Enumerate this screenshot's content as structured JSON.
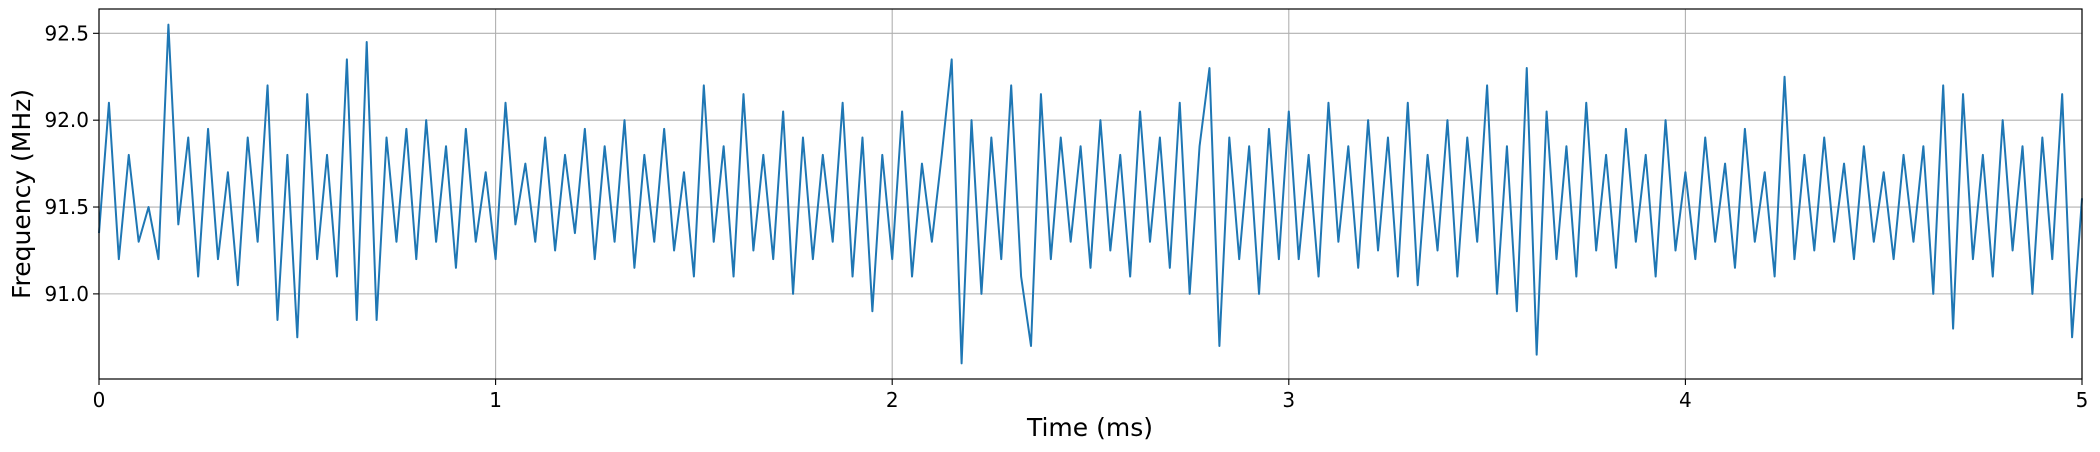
{
  "chart_data": {
    "type": "line",
    "x_label": "Time (ms)",
    "y_label": "Frequency (MHz)",
    "color": "#1f77b4",
    "grid": true,
    "xlim": [
      0,
      5
    ],
    "ylim": [
      90.51,
      92.64
    ],
    "xticks": [
      0,
      1,
      2,
      3,
      4,
      5
    ],
    "yticks": [
      {
        "value": 91,
        "label": "91.0"
      },
      91.5,
      {
        "value": 92,
        "label": "92.0"
      },
      92.5
    ],
    "x": [
      0,
      0.025,
      0.05,
      0.075,
      0.1,
      0.125,
      0.15,
      0.175,
      0.2,
      0.225,
      0.25,
      0.275,
      0.3,
      0.325,
      0.35,
      0.375,
      0.4,
      0.425,
      0.45,
      0.475,
      0.5,
      0.525,
      0.55,
      0.575,
      0.6,
      0.625,
      0.65,
      0.675,
      0.7,
      0.725,
      0.75,
      0.775,
      0.8,
      0.825,
      0.85,
      0.875,
      0.9,
      0.925,
      0.95,
      0.975,
      1,
      1.025,
      1.05,
      1.075,
      1.1,
      1.125,
      1.15,
      1.175,
      1.2,
      1.225,
      1.25,
      1.275,
      1.3,
      1.325,
      1.35,
      1.375,
      1.4,
      1.425,
      1.45,
      1.475,
      1.5,
      1.525,
      1.55,
      1.575,
      1.6,
      1.625,
      1.65,
      1.675,
      1.7,
      1.725,
      1.75,
      1.775,
      1.8,
      1.825,
      1.85,
      1.875,
      1.9,
      1.925,
      1.95,
      1.975,
      2,
      2.025,
      2.05,
      2.075,
      2.1,
      2.125,
      2.15,
      2.175,
      2.2,
      2.225,
      2.25,
      2.275,
      2.3,
      2.325,
      2.35,
      2.375,
      2.4,
      2.425,
      2.45,
      2.475,
      2.5,
      2.525,
      2.55,
      2.575,
      2.6,
      2.625,
      2.65,
      2.675,
      2.7,
      2.725,
      2.75,
      2.775,
      2.8,
      2.825,
      2.85,
      2.875,
      2.9,
      2.925,
      2.95,
      2.975,
      3,
      3.025,
      3.05,
      3.075,
      3.1,
      3.125,
      3.15,
      3.175,
      3.2,
      3.225,
      3.25,
      3.275,
      3.3,
      3.325,
      3.35,
      3.375,
      3.4,
      3.425,
      3.45,
      3.475,
      3.5,
      3.525,
      3.55,
      3.575,
      3.6,
      3.625,
      3.65,
      3.675,
      3.7,
      3.725,
      3.75,
      3.775,
      3.8,
      3.825,
      3.85,
      3.875,
      3.9,
      3.925,
      3.95,
      3.975,
      4,
      4.025,
      4.05,
      4.075,
      4.1,
      4.125,
      4.15,
      4.175,
      4.2,
      4.225,
      4.25,
      4.275,
      4.3,
      4.325,
      4.35,
      4.375,
      4.4,
      4.425,
      4.45,
      4.475,
      4.5,
      4.525,
      4.55,
      4.575,
      4.6,
      4.625,
      4.65,
      4.675,
      4.7,
      4.725,
      4.75,
      4.775,
      4.8,
      4.825,
      4.85,
      4.875,
      4.9,
      4.925,
      4.95,
      4.975,
      5
    ],
    "values": [
      91.35,
      92.1,
      91.2,
      91.8,
      91.3,
      91.5,
      91.2,
      92.55,
      91.4,
      91.9,
      91.1,
      91.95,
      91.2,
      91.7,
      91.05,
      91.9,
      91.3,
      92.2,
      90.85,
      91.8,
      90.75,
      92.15,
      91.2,
      91.8,
      91.1,
      92.35,
      90.85,
      92.45,
      90.85,
      91.9,
      91.3,
      91.95,
      91.2,
      92.0,
      91.3,
      91.85,
      91.15,
      91.95,
      91.3,
      91.7,
      91.2,
      92.1,
      91.4,
      91.75,
      91.3,
      91.9,
      91.25,
      91.8,
      91.35,
      91.95,
      91.2,
      91.85,
      91.3,
      92.0,
      91.15,
      91.8,
      91.3,
      91.95,
      91.25,
      91.7,
      91.1,
      92.2,
      91.3,
      91.85,
      91.1,
      92.15,
      91.25,
      91.8,
      91.2,
      92.05,
      91.0,
      91.9,
      91.2,
      91.8,
      91.3,
      92.1,
      91.1,
      91.9,
      90.9,
      91.8,
      91.2,
      92.05,
      91.1,
      91.75,
      91.3,
      91.8,
      92.35,
      90.6,
      92.0,
      91.0,
      91.9,
      91.2,
      92.2,
      91.1,
      90.7,
      92.15,
      91.2,
      91.9,
      91.3,
      91.85,
      91.15,
      92.0,
      91.25,
      91.8,
      91.1,
      92.05,
      91.3,
      91.9,
      91.15,
      92.1,
      91.0,
      91.85,
      92.3,
      90.7,
      91.9,
      91.2,
      91.85,
      91.0,
      91.95,
      91.2,
      92.05,
      91.2,
      91.8,
      91.1,
      92.1,
      91.3,
      91.85,
      91.15,
      92.0,
      91.25,
      91.9,
      91.1,
      92.1,
      91.05,
      91.8,
      91.25,
      92.0,
      91.1,
      91.9,
      91.3,
      92.2,
      91.0,
      91.85,
      90.9,
      92.3,
      90.65,
      92.05,
      91.2,
      91.85,
      91.1,
      92.1,
      91.25,
      91.8,
      91.15,
      91.95,
      91.3,
      91.8,
      91.1,
      92.0,
      91.25,
      91.7,
      91.2,
      91.9,
      91.3,
      91.75,
      91.15,
      91.95,
      91.3,
      91.7,
      91.1,
      92.25,
      91.2,
      91.8,
      91.25,
      91.9,
      91.3,
      91.75,
      91.2,
      91.85,
      91.3,
      91.7,
      91.2,
      91.8,
      91.3,
      91.85,
      91.0,
      92.2,
      90.8,
      92.15,
      91.2,
      91.8,
      91.1,
      92.0,
      91.25,
      91.85,
      91.0,
      91.9,
      91.2,
      92.15,
      90.75,
      91.55
    ]
  }
}
